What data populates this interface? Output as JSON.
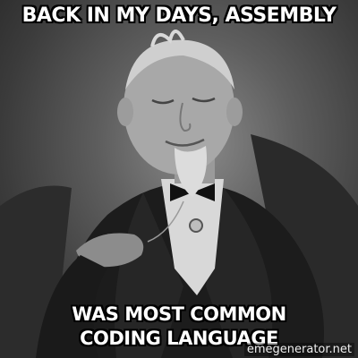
{
  "meme": {
    "top_text": "BACK IN MY DAYS, ASSEMBLY",
    "bottom_text": "WAS MOST COMMON CODING LANGUAGE",
    "watermark": "emegenerator.net"
  }
}
